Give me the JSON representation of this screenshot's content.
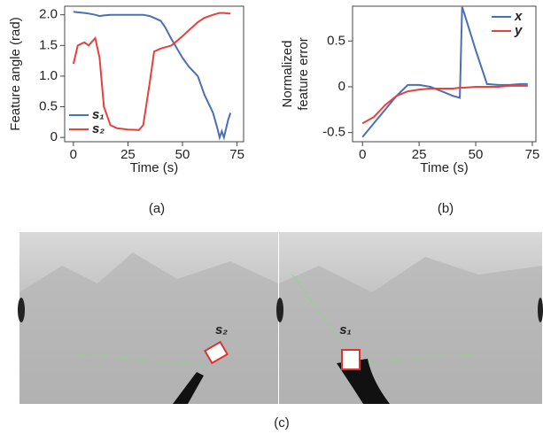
{
  "chart_data": [
    {
      "type": "line",
      "xlabel": "Time (s)",
      "ylabel": [
        "Feature angle (rad)"
      ],
      "legend": "lower left",
      "x": [
        0,
        2,
        5,
        7,
        10,
        12,
        14,
        17,
        20,
        25,
        30,
        32,
        35,
        37,
        40,
        42,
        45,
        50,
        53,
        57,
        60,
        64,
        66,
        67,
        68,
        69,
        71,
        72
      ],
      "series": [
        {
          "name": "s₁",
          "color": "#4a6fb5",
          "values": [
            2.05,
            2.04,
            2.03,
            2.02,
            2.0,
            1.98,
            1.99,
            2.0,
            2.0,
            2.0,
            2.0,
            2.0,
            1.98,
            1.95,
            1.9,
            1.8,
            1.6,
            1.3,
            1.15,
            1.0,
            0.7,
            0.4,
            0.15,
            0.0,
            0.1,
            0.0,
            0.3,
            0.4
          ]
        },
        {
          "name": "s₂",
          "color": "#e8403c",
          "values": [
            1.2,
            1.5,
            1.55,
            1.5,
            1.62,
            1.3,
            0.5,
            0.2,
            0.15,
            0.13,
            0.12,
            0.2,
            0.9,
            1.4,
            1.45,
            1.47,
            1.5,
            1.65,
            1.75,
            1.88,
            1.95,
            2.0,
            2.02,
            2.03,
            2.03,
            2.03,
            2.02,
            2.02
          ]
        }
      ],
      "xlim": [
        -4,
        78
      ],
      "xticks": [
        0,
        25,
        50,
        75
      ],
      "ylim": [
        -0.07,
        2.14
      ],
      "yticks": [
        {
          "value": 0,
          "label": "0"
        },
        0.5,
        {
          "value": 1,
          "label": "1.0"
        },
        1.5,
        {
          "value": 2,
          "label": "2.0"
        }
      ]
    },
    {
      "type": "line",
      "xlabel": "Time (s)",
      "ylabel": [
        "Normalized",
        "feature error"
      ],
      "legend": "upper right",
      "x": [
        0,
        5,
        10,
        15,
        20,
        25,
        30,
        35,
        40,
        43,
        44,
        45,
        50,
        55,
        60,
        65,
        70,
        73
      ],
      "series": [
        {
          "name": "x",
          "color": "#4a6fb5",
          "values": [
            -0.55,
            -0.4,
            -0.25,
            -0.1,
            0.02,
            0.02,
            0,
            -0.05,
            -0.1,
            -0.12,
            0.87,
            0.8,
            0.4,
            0.03,
            0.02,
            0.02,
            0.03,
            0.03
          ]
        },
        {
          "name": "y",
          "color": "#e8403c",
          "values": [
            -0.4,
            -0.33,
            -0.2,
            -0.1,
            -0.05,
            -0.03,
            -0.02,
            -0.02,
            -0.02,
            -0.01,
            -0.01,
            -0.01,
            0,
            0,
            0,
            0.01,
            0.01,
            0.01
          ]
        }
      ],
      "xlim": [
        -4.4,
        76.6
      ],
      "xticks": [
        0,
        25,
        50,
        75
      ],
      "ylim": [
        -0.6,
        0.88
      ],
      "yticks": [
        -0.5,
        0,
        0.5
      ]
    }
  ],
  "captions": [
    "(a)",
    "(b)",
    "(c)"
  ],
  "image_labels": [
    "s₂",
    "s₁"
  ]
}
